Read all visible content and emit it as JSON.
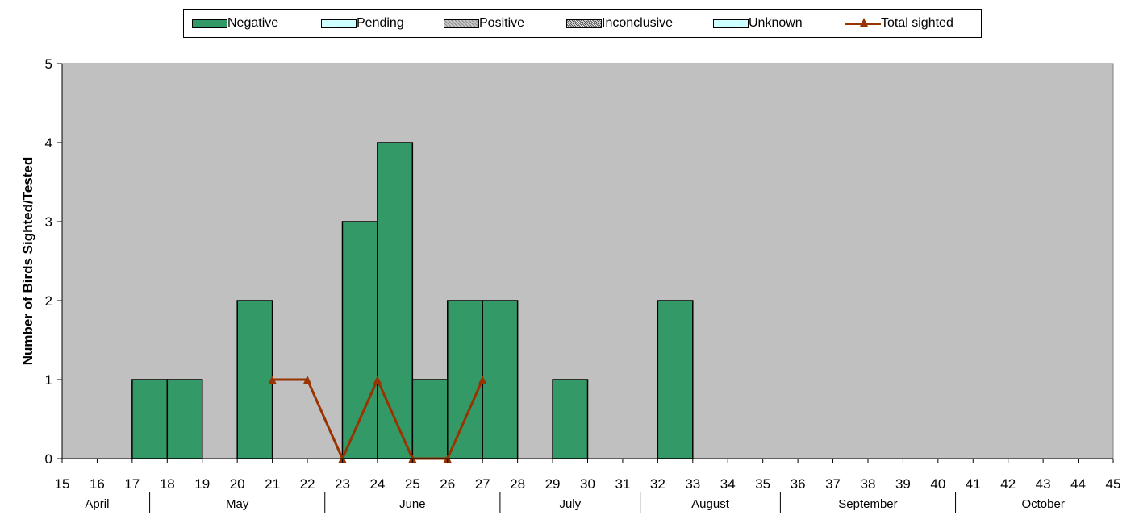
{
  "chart_data": {
    "type": "bar",
    "title": "",
    "xlabel": "",
    "ylabel": "Number of Birds Sighted/Tested",
    "ylim": [
      0,
      5
    ],
    "y_ticks": [
      "0",
      "1",
      "2",
      "3",
      "4",
      "5"
    ],
    "categories": [
      "15",
      "16",
      "17",
      "18",
      "19",
      "20",
      "21",
      "22",
      "23",
      "24",
      "25",
      "26",
      "27",
      "28",
      "29",
      "30",
      "31",
      "32",
      "33",
      "34",
      "35",
      "36",
      "37",
      "38",
      "39",
      "40",
      "41",
      "42",
      "43",
      "44",
      "45"
    ],
    "months": [
      {
        "label": "April",
        "start_week": 15,
        "end_week": 17
      },
      {
        "label": "May",
        "start_week": 18,
        "end_week": 22
      },
      {
        "label": "June",
        "start_week": 23,
        "end_week": 27
      },
      {
        "label": "July",
        "start_week": 28,
        "end_week": 31
      },
      {
        "label": "August",
        "start_week": 32,
        "end_week": 35
      },
      {
        "label": "September",
        "start_week": 36,
        "end_week": 40
      },
      {
        "label": "October",
        "start_week": 41,
        "end_week": 45
      }
    ],
    "series": [
      {
        "name": "Negative",
        "kind": "bar",
        "color": "#339966",
        "values": [
          0,
          0,
          0,
          1,
          1,
          0,
          2,
          0,
          0,
          3,
          4,
          1,
          2,
          2,
          0,
          1,
          0,
          0,
          2,
          0,
          0,
          0,
          0,
          0,
          0,
          0,
          0,
          0,
          0,
          0,
          0
        ]
      },
      {
        "name": "Pending",
        "kind": "bar",
        "color": "#CCFFFF",
        "values": [
          0,
          0,
          0,
          0,
          0,
          0,
          0,
          0,
          0,
          0,
          0,
          0,
          0,
          0,
          0,
          0,
          0,
          0,
          0,
          0,
          0,
          0,
          0,
          0,
          0,
          0,
          0,
          0,
          0,
          0,
          0
        ]
      },
      {
        "name": "Positive",
        "kind": "bar",
        "color": "#A6A6A6",
        "values": [
          0,
          0,
          0,
          0,
          0,
          0,
          0,
          0,
          0,
          0,
          0,
          0,
          0,
          0,
          0,
          0,
          0,
          0,
          0,
          0,
          0,
          0,
          0,
          0,
          0,
          0,
          0,
          0,
          0,
          0,
          0
        ]
      },
      {
        "name": "Inconclusive",
        "kind": "bar",
        "color": "#D9D9D9",
        "values": [
          0,
          0,
          0,
          0,
          0,
          0,
          0,
          0,
          0,
          0,
          0,
          0,
          0,
          0,
          0,
          0,
          0,
          0,
          0,
          0,
          0,
          0,
          0,
          0,
          0,
          0,
          0,
          0,
          0,
          0,
          0
        ]
      },
      {
        "name": "Unknown",
        "kind": "bar",
        "color": "#CCFFFF",
        "values": [
          0,
          0,
          0,
          0,
          0,
          0,
          0,
          0,
          0,
          0,
          0,
          0,
          0,
          0,
          0,
          0,
          0,
          0,
          0,
          0,
          0,
          0,
          0,
          0,
          0,
          0,
          0,
          0,
          0,
          0,
          0
        ]
      },
      {
        "name": "Total sighted",
        "kind": "line",
        "color": "#993300",
        "points": [
          {
            "x": "21",
            "y": 1
          },
          {
            "x": "22",
            "y": 1
          },
          {
            "x": "23",
            "y": 0
          },
          {
            "x": "24",
            "y": 1
          },
          {
            "x": "25",
            "y": 0
          },
          {
            "x": "26",
            "y": 0
          },
          {
            "x": "27",
            "y": 1
          }
        ]
      }
    ],
    "plot_background": "#C0C0C0",
    "grid": false,
    "legend_position": "top"
  }
}
